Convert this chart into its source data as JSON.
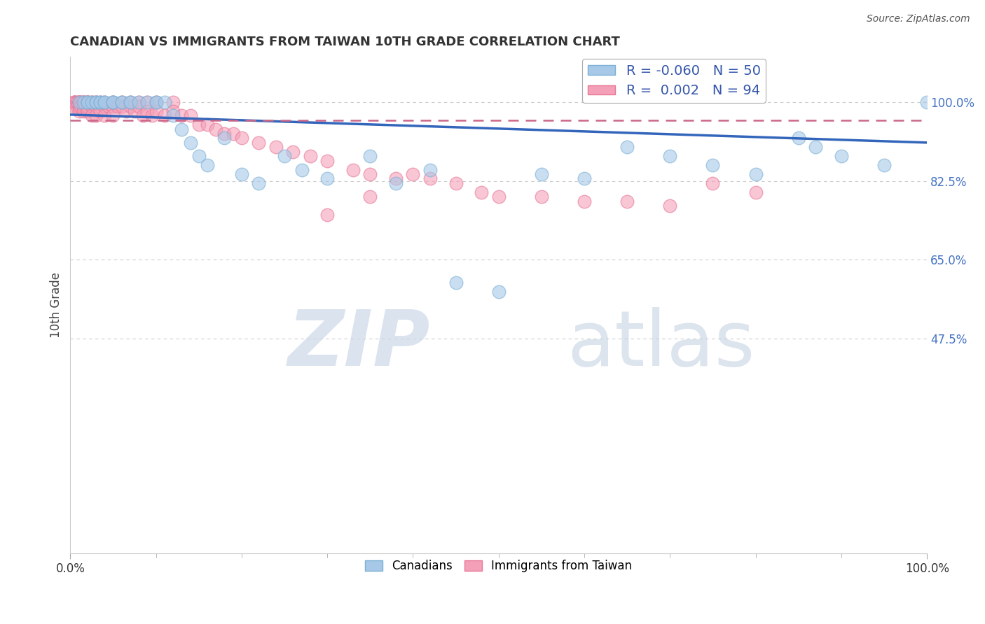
{
  "title": "CANADIAN VS IMMIGRANTS FROM TAIWAN 10TH GRADE CORRELATION CHART",
  "source": "Source: ZipAtlas.com",
  "ylabel": "10th Grade",
  "xlim": [
    0.0,
    1.0
  ],
  "ylim": [
    0.0,
    1.1
  ],
  "blue_R": -0.06,
  "blue_N": 50,
  "pink_R": 0.002,
  "pink_N": 94,
  "blue_color": "#a8c8e8",
  "blue_edge_color": "#7ab0d4",
  "pink_color": "#f4a0b8",
  "pink_edge_color": "#e87898",
  "blue_line_color": "#3366bb",
  "pink_line_color": "#cc6688",
  "grid_color": "#cccccc",
  "watermark_zip_color": "#dde8f4",
  "watermark_atlas_color": "#c8d8e8",
  "legend_label_blue": "Canadians",
  "legend_label_pink": "Immigrants from Taiwan",
  "ytick_vals": [
    0.475,
    0.65,
    0.825,
    1.0
  ],
  "ytick_labels": [
    "47.5%",
    "65.0%",
    "82.5%",
    "100.0%"
  ],
  "blue_line_start_y": 0.972,
  "blue_line_end_y": 0.91,
  "pink_line_y": 0.96,
  "blue_points_x": [
    0.01,
    0.015,
    0.02,
    0.02,
    0.025,
    0.03,
    0.03,
    0.035,
    0.035,
    0.04,
    0.04,
    0.05,
    0.05,
    0.05,
    0.06,
    0.06,
    0.07,
    0.07,
    0.08,
    0.09,
    0.1,
    0.1,
    0.11,
    0.12,
    0.13,
    0.14,
    0.15,
    0.16,
    0.18,
    0.2,
    0.22,
    0.25,
    0.27,
    0.3,
    0.35,
    0.38,
    0.42,
    0.45,
    0.5,
    0.55,
    0.6,
    0.65,
    0.7,
    0.75,
    0.8,
    0.85,
    0.87,
    0.9,
    0.95,
    1.0
  ],
  "blue_points_y": [
    1.0,
    1.0,
    1.0,
    1.0,
    1.0,
    1.0,
    1.0,
    1.0,
    1.0,
    1.0,
    1.0,
    1.0,
    1.0,
    1.0,
    1.0,
    1.0,
    1.0,
    1.0,
    1.0,
    1.0,
    1.0,
    1.0,
    1.0,
    0.97,
    0.94,
    0.91,
    0.88,
    0.86,
    0.92,
    0.84,
    0.82,
    0.88,
    0.85,
    0.83,
    0.88,
    0.82,
    0.85,
    0.6,
    0.58,
    0.84,
    0.83,
    0.9,
    0.88,
    0.86,
    0.84,
    0.92,
    0.9,
    0.88,
    0.86,
    1.0
  ],
  "pink_points_x": [
    0.005,
    0.005,
    0.005,
    0.005,
    0.005,
    0.008,
    0.008,
    0.008,
    0.01,
    0.01,
    0.01,
    0.01,
    0.01,
    0.01,
    0.012,
    0.012,
    0.012,
    0.015,
    0.015,
    0.015,
    0.015,
    0.015,
    0.015,
    0.018,
    0.018,
    0.02,
    0.02,
    0.02,
    0.02,
    0.02,
    0.025,
    0.025,
    0.025,
    0.025,
    0.03,
    0.03,
    0.03,
    0.03,
    0.035,
    0.035,
    0.04,
    0.04,
    0.04,
    0.045,
    0.05,
    0.05,
    0.05,
    0.055,
    0.06,
    0.06,
    0.065,
    0.07,
    0.07,
    0.075,
    0.08,
    0.08,
    0.085,
    0.09,
    0.09,
    0.095,
    0.1,
    0.1,
    0.11,
    0.12,
    0.12,
    0.13,
    0.14,
    0.15,
    0.16,
    0.17,
    0.18,
    0.19,
    0.2,
    0.22,
    0.24,
    0.26,
    0.28,
    0.3,
    0.33,
    0.35,
    0.38,
    0.4,
    0.42,
    0.45,
    0.48,
    0.5,
    0.55,
    0.6,
    0.65,
    0.7,
    0.75,
    0.8,
    0.3,
    0.35
  ],
  "pink_points_y": [
    1.0,
    1.0,
    1.0,
    1.0,
    0.99,
    1.0,
    1.0,
    0.99,
    1.0,
    1.0,
    1.0,
    0.99,
    0.99,
    0.98,
    1.0,
    1.0,
    0.99,
    1.0,
    1.0,
    1.0,
    0.99,
    0.99,
    0.98,
    1.0,
    0.99,
    1.0,
    1.0,
    1.0,
    0.99,
    0.98,
    1.0,
    1.0,
    0.99,
    0.97,
    1.0,
    1.0,
    0.99,
    0.97,
    1.0,
    0.98,
    1.0,
    0.99,
    0.97,
    0.99,
    1.0,
    0.99,
    0.97,
    0.99,
    1.0,
    0.99,
    0.98,
    1.0,
    0.99,
    0.98,
    1.0,
    0.99,
    0.97,
    1.0,
    0.98,
    0.97,
    1.0,
    0.98,
    0.97,
    1.0,
    0.98,
    0.97,
    0.97,
    0.95,
    0.95,
    0.94,
    0.93,
    0.93,
    0.92,
    0.91,
    0.9,
    0.89,
    0.88,
    0.87,
    0.85,
    0.84,
    0.83,
    0.84,
    0.83,
    0.82,
    0.8,
    0.79,
    0.79,
    0.78,
    0.78,
    0.77,
    0.82,
    0.8,
    0.75,
    0.79
  ]
}
